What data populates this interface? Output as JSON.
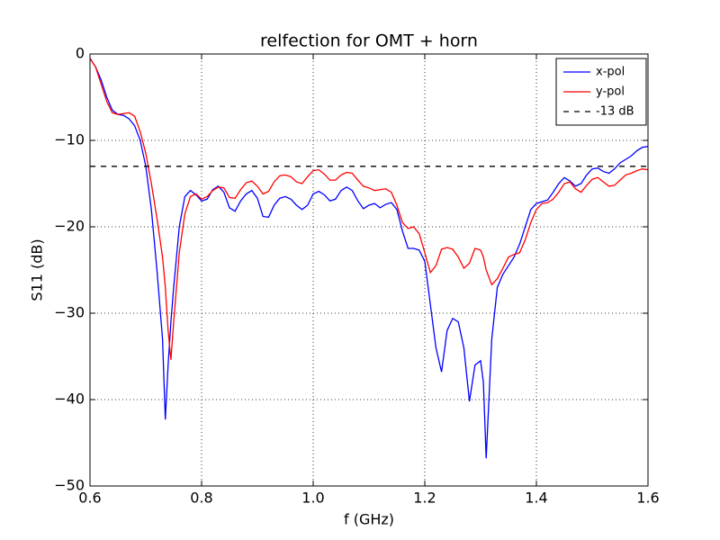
{
  "chart_data": {
    "type": "line",
    "title": "relfection for OMT + horn",
    "x_label": "f (GHz)",
    "y_label": "S11 (dB)",
    "x": [
      0.6,
      0.61,
      0.62,
      0.63,
      0.64,
      0.65,
      0.66,
      0.67,
      0.68,
      0.69,
      0.7,
      0.71,
      0.72,
      0.73,
      0.735,
      0.74,
      0.745,
      0.75,
      0.76,
      0.77,
      0.78,
      0.79,
      0.8,
      0.81,
      0.82,
      0.83,
      0.84,
      0.85,
      0.86,
      0.87,
      0.88,
      0.89,
      0.9,
      0.91,
      0.92,
      0.93,
      0.94,
      0.95,
      0.96,
      0.97,
      0.98,
      0.99,
      1.0,
      1.01,
      1.02,
      1.03,
      1.04,
      1.05,
      1.06,
      1.07,
      1.08,
      1.09,
      1.1,
      1.11,
      1.12,
      1.13,
      1.14,
      1.15,
      1.16,
      1.17,
      1.18,
      1.19,
      1.2,
      1.21,
      1.22,
      1.23,
      1.24,
      1.25,
      1.26,
      1.27,
      1.28,
      1.29,
      1.3,
      1.305,
      1.31,
      1.32,
      1.33,
      1.34,
      1.35,
      1.36,
      1.37,
      1.38,
      1.39,
      1.4,
      1.41,
      1.42,
      1.43,
      1.44,
      1.45,
      1.46,
      1.47,
      1.48,
      1.49,
      1.5,
      1.51,
      1.52,
      1.53,
      1.54,
      1.55,
      1.56,
      1.57,
      1.58,
      1.59,
      1.6
    ],
    "series": [
      {
        "name": "x-pol",
        "color": "#0000ff",
        "linestyle": "solid",
        "values": [
          -0.5,
          -1.5,
          -3,
          -5,
          -6.5,
          -7,
          -7.1,
          -7.5,
          -8.3,
          -10,
          -13,
          -18,
          -25,
          -33,
          -42.3,
          -36,
          -31,
          -27,
          -20,
          -16.5,
          -15.8,
          -16.3,
          -17,
          -16.8,
          -15.7,
          -15.3,
          -16,
          -17.8,
          -18.2,
          -17,
          -16.2,
          -15.8,
          -16.7,
          -18.8,
          -18.9,
          -17.5,
          -16.7,
          -16.5,
          -16.8,
          -17.5,
          -18,
          -17.5,
          -16.2,
          -15.9,
          -16.3,
          -17,
          -16.8,
          -15.8,
          -15.4,
          -15.8,
          -17,
          -17.9,
          -17.5,
          -17.3,
          -17.8,
          -17.4,
          -17.2,
          -18,
          -20.5,
          -22.5,
          -22.5,
          -22.7,
          -24,
          -29,
          -34,
          -36.8,
          -32,
          -30.6,
          -31,
          -34,
          -40.2,
          -36,
          -35.5,
          -38,
          -46.8,
          -33,
          -27,
          -25.5,
          -24.5,
          -23.5,
          -22,
          -20,
          -18,
          -17.3,
          -17.1,
          -16.9,
          -16,
          -15,
          -14.3,
          -14.7,
          -15.3,
          -15,
          -14,
          -13.3,
          -13.2,
          -13.6,
          -13.8,
          -13.3,
          -12.6,
          -12.2,
          -11.8,
          -11.2,
          -10.8,
          -10.7
        ]
      },
      {
        "name": "y-pol",
        "color": "#ff0000",
        "linestyle": "solid",
        "values": [
          -0.5,
          -1.5,
          -3.5,
          -5.5,
          -6.8,
          -7,
          -6.9,
          -6.8,
          -7.2,
          -9,
          -11.5,
          -15,
          -19,
          -23.5,
          -27,
          -32,
          -35.4,
          -31,
          -23,
          -18.5,
          -16.5,
          -16.2,
          -16.8,
          -16.5,
          -15.8,
          -15.4,
          -15.5,
          -16.6,
          -16.7,
          -15.7,
          -14.9,
          -14.7,
          -15.3,
          -16.2,
          -15.9,
          -14.8,
          -14.1,
          -14,
          -14.2,
          -14.8,
          -15,
          -14.2,
          -13.5,
          -13.4,
          -13.9,
          -14.6,
          -14.6,
          -14,
          -13.7,
          -13.8,
          -14.6,
          -15.3,
          -15.5,
          -15.8,
          -15.7,
          -15.6,
          -16,
          -17.5,
          -19.5,
          -20.2,
          -20,
          -20.8,
          -23,
          -25.3,
          -24.5,
          -22.6,
          -22.4,
          -22.6,
          -23.5,
          -24.8,
          -24.2,
          -22.5,
          -22.7,
          -23.5,
          -25,
          -26.7,
          -26,
          -24.8,
          -23.5,
          -23.2,
          -23,
          -21.5,
          -19.5,
          -18,
          -17.3,
          -17.2,
          -16.8,
          -16,
          -15,
          -14.8,
          -15.6,
          -16,
          -15.2,
          -14.5,
          -14.3,
          -14.8,
          -15.3,
          -15.2,
          -14.6,
          -14,
          -13.8,
          -13.5,
          -13.3,
          -13.4
        ]
      },
      {
        "name": "-13 dB",
        "color": "#000000",
        "linestyle": "dashed",
        "x": [
          0.6,
          1.6
        ],
        "values": [
          -13,
          -13
        ]
      }
    ],
    "xlim": [
      0.6,
      1.6
    ],
    "xticks": [
      0.6,
      0.8,
      {
        "value": 1,
        "label": "1.0"
      },
      1.2,
      1.4,
      1.6
    ],
    "ylim": [
      -50,
      0
    ],
    "yticks": [
      {
        "value": -50,
        "label": "−50"
      },
      {
        "value": -40,
        "label": "−40"
      },
      {
        "value": -30,
        "label": "−30"
      },
      {
        "value": -20,
        "label": "−20"
      },
      {
        "value": -10,
        "label": "−10"
      },
      0
    ],
    "grid": true,
    "legend": "upper right"
  }
}
